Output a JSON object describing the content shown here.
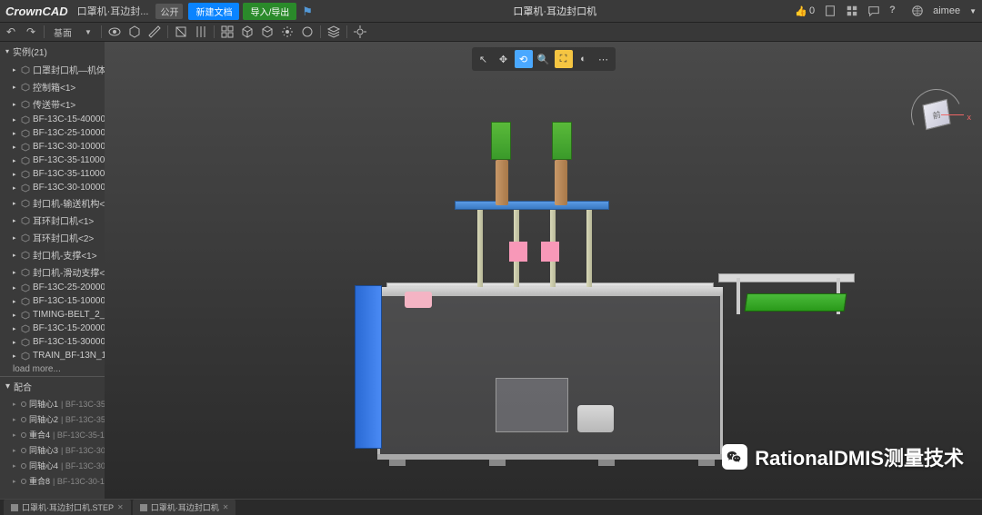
{
  "app": {
    "logo": "CrownCAD"
  },
  "titlebar": {
    "doc_truncated": "口罩机·耳边封...",
    "public_tag": "公开",
    "btn_new": "新建文档",
    "btn_io": "导入/导出",
    "center_title": "口罩机·耳边封口机",
    "like_count": "0",
    "username": "aimee"
  },
  "toolbar": {
    "scene_label": "基面"
  },
  "tree": {
    "header": "实例(21)",
    "items": [
      "口罩封口机—机体<1>",
      "控制箱<1>",
      "传送带<1>",
      "BF-13C-15-40000_AS",
      "BF-13C-25-10000_AS",
      "BF-13C-30-10000_AS",
      "BF-13C-35-11000_AS",
      "BF-13C-35-11000_AS",
      "BF-13C-30-10000_AS",
      "封口机-输送机构<1>",
      "耳环封口机<1>",
      "耳环封口机<2>",
      "封口机-支撑<1>",
      "封口机-滑动支撑<3>",
      "BF-13C-25-20000_AS",
      "BF-13C-15-10000_AS",
      "TIMING-BELT_2_26_1",
      "BF-13C-15-20000_AS",
      "BF-13C-15-30000_AS",
      "TRAIN_BF-13N_162_1"
    ],
    "load_more": "load more..."
  },
  "mates": {
    "header": "配合",
    "items": [
      {
        "name": "同轴心1",
        "ref": "BF-13C-35..."
      },
      {
        "name": "同轴心2",
        "ref": "BF-13C-35..."
      },
      {
        "name": "重合4",
        "ref": "BF-13C-35-1..."
      },
      {
        "name": "同轴心3",
        "ref": "BF-13C-30..."
      },
      {
        "name": "同轴心4",
        "ref": "BF-13C-30..."
      },
      {
        "name": "重合8",
        "ref": "BF-13C-30-1..."
      }
    ]
  },
  "viewcube": {
    "face": "前",
    "axis_x": "x"
  },
  "bottomtabs": {
    "tab1": "口罩机·耳边封口机.STEP",
    "tab2": "口罩机·耳边封口机"
  },
  "watermark": {
    "text": "RationalDMIS测量技术"
  },
  "colors": {
    "bg_dark": "#2a2a2a",
    "panel": "#3a3a3a",
    "accent_blue": "#0a84ff",
    "accent_green": "#2a8a2a",
    "model_blue": "#4a8af4",
    "model_green": "#3a9a2a",
    "model_pink": "#f898b8",
    "model_brass": "#a87848",
    "model_alu": "#b8b8b8"
  }
}
